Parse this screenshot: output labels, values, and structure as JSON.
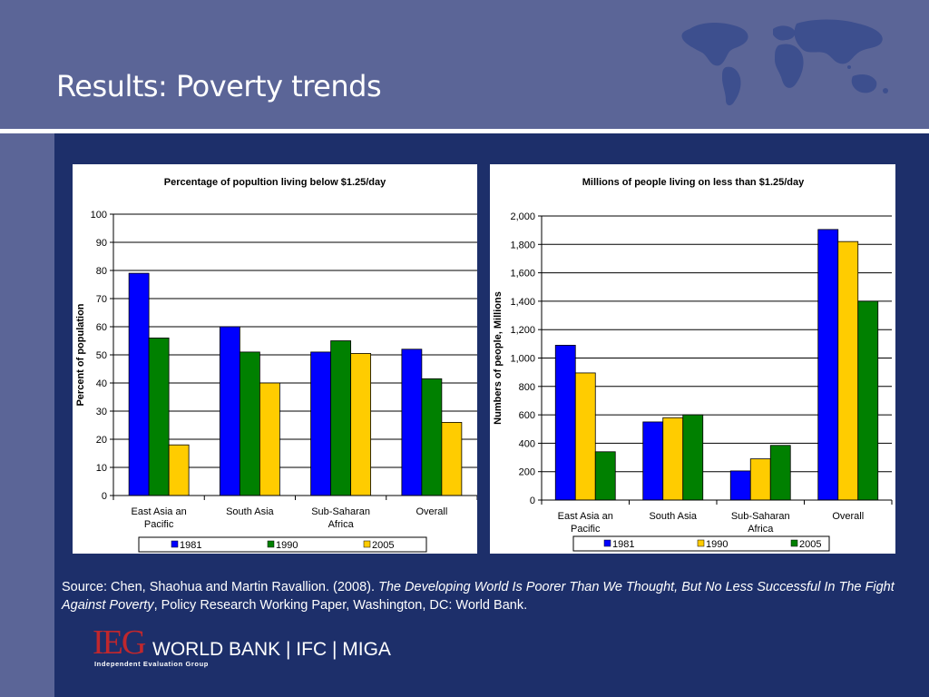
{
  "slide": {
    "title": "Results: Poverty trends"
  },
  "source": {
    "prefix": "Source: Chen, Shaohua and Martin Ravallion. (2008). ",
    "title_italic": "The Developing World Is Poorer Than We Thought, But No Less Successful In The Fight Against Poverty",
    "suffix": ", Policy Research Working Paper, Washington, DC:  World Bank."
  },
  "logo": {
    "ieg": "IEG",
    "text": "WORLD BANK | IFC | MIGA",
    "subtitle": "Independent Evaluation Group"
  },
  "colors": {
    "series_1981": "#0000ff",
    "series_1990": "#008000",
    "series_2005": "#ffcc00"
  },
  "chart_data": [
    {
      "type": "bar",
      "title": "Percentage of popultion living below $1.25/day",
      "xlabel": "",
      "ylabel": "Percent of population",
      "ylim": [
        0,
        100
      ],
      "yticks": [
        "0",
        "10",
        "20",
        "30",
        "40",
        "50",
        "60",
        "70",
        "80",
        "90",
        "100"
      ],
      "grid": true,
      "legend_position": "bottom",
      "categories": [
        [
          "East Asia an",
          "Pacific"
        ],
        [
          "South Asia"
        ],
        [
          "Sub-Saharan",
          "Africa"
        ],
        [
          "Overall"
        ]
      ],
      "series": [
        {
          "name": "1981",
          "color": "#0000ff",
          "values": [
            79,
            60,
            51,
            52
          ]
        },
        {
          "name": "1990",
          "color": "#008000",
          "values": [
            56,
            51,
            55,
            41.5
          ]
        },
        {
          "name": "2005",
          "color": "#ffcc00",
          "values": [
            18,
            40,
            50.5,
            26
          ]
        }
      ],
      "legend": [
        {
          "name": "1981",
          "color": "#0000ff"
        },
        {
          "name": "1990",
          "color": "#008000"
        },
        {
          "name": "2005",
          "color": "#ffcc00"
        }
      ]
    },
    {
      "type": "bar",
      "title": "Millions of people living on less than $1.25/day",
      "xlabel": "",
      "ylabel": "Numbers of people, Millions",
      "ylim": [
        0,
        2000
      ],
      "yticks": [
        "0",
        "200",
        "400",
        "600",
        "800",
        "1,000",
        "1,200",
        "1,400",
        "1,600",
        "1,800",
        "2,000"
      ],
      "grid": true,
      "legend_position": "bottom",
      "categories": [
        [
          "East Asia an",
          "Pacific"
        ],
        [
          "South Asia"
        ],
        [
          "Sub-Saharan",
          "Africa"
        ],
        [
          "Overall"
        ]
      ],
      "series": [
        {
          "name": "1981",
          "color": "#0000ff",
          "values": [
            1090,
            550,
            205,
            1905
          ]
        },
        {
          "name": "1990",
          "color": "#ffcc00",
          "values": [
            895,
            580,
            290,
            1820
          ]
        },
        {
          "name": "2005",
          "color": "#008000",
          "values": [
            340,
            600,
            385,
            1400
          ]
        }
      ],
      "legend": [
        {
          "name": "1981",
          "color": "#0000ff"
        },
        {
          "name": "1990",
          "color": "#ffcc00"
        },
        {
          "name": "2005",
          "color": "#008000"
        }
      ]
    }
  ]
}
